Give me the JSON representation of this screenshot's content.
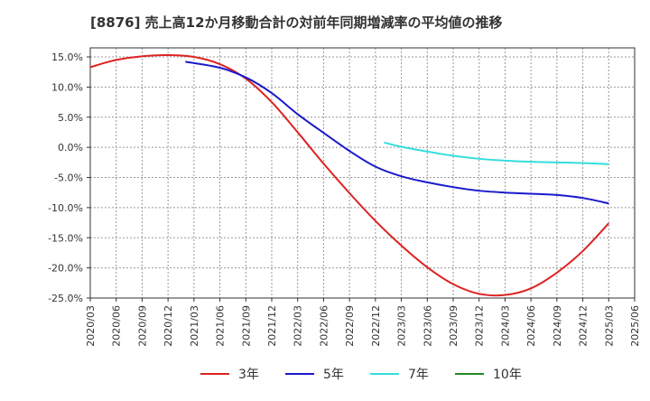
{
  "chart_data": {
    "type": "line",
    "title": "[8876]  売上高12か月移動合計の対前年同期増減率の平均値の推移",
    "xlabel": "",
    "ylabel": "",
    "ylim": [
      -25,
      16.5
    ],
    "yticks": [
      "15.0%",
      "10.0%",
      "5.0%",
      "0.0%",
      "-5.0%",
      "-10.0%",
      "-15.0%",
      "-20.0%",
      "-25.0%"
    ],
    "ytick_values": [
      15,
      10,
      5,
      0,
      -5,
      -10,
      -15,
      -20,
      -25
    ],
    "xticks": [
      "2020/03",
      "2020/06",
      "2020/09",
      "2020/12",
      "2021/03",
      "2021/06",
      "2021/09",
      "2021/12",
      "2022/03",
      "2022/06",
      "2022/09",
      "2022/12",
      "2023/03",
      "2023/06",
      "2023/09",
      "2023/12",
      "2024/03",
      "2024/06",
      "2024/09",
      "2024/12",
      "2025/03",
      "2025/06"
    ],
    "grid": true,
    "legend": "bottom",
    "series": [
      {
        "name": "3年",
        "color": "#dd2222",
        "points": [
          [
            "2020/03",
            13.3
          ],
          [
            "2020/06",
            14.5
          ],
          [
            "2020/09",
            15.1
          ],
          [
            "2020/12",
            15.3
          ],
          [
            "2021/03",
            15.0
          ],
          [
            "2021/06",
            13.8
          ],
          [
            "2021/09",
            11.4
          ],
          [
            "2021/12",
            7.5
          ],
          [
            "2022/03",
            2.5
          ],
          [
            "2022/06",
            -2.7
          ],
          [
            "2022/09",
            -7.6
          ],
          [
            "2022/12",
            -12.2
          ],
          [
            "2023/03",
            -16.3
          ],
          [
            "2023/06",
            -19.9
          ],
          [
            "2023/09",
            -22.7
          ],
          [
            "2023/12",
            -24.3
          ],
          [
            "2024/03",
            -24.5
          ],
          [
            "2024/06",
            -23.4
          ],
          [
            "2024/09",
            -20.8
          ],
          [
            "2024/12",
            -17.2
          ],
          [
            "2025/03",
            -12.6
          ]
        ]
      },
      {
        "name": "5年",
        "color": "#1a1acc",
        "points": [
          [
            "2021/02",
            14.2
          ],
          [
            "2021/06",
            13.2
          ],
          [
            "2021/09",
            11.6
          ],
          [
            "2021/12",
            9.0
          ],
          [
            "2022/03",
            5.5
          ],
          [
            "2022/06",
            2.4
          ],
          [
            "2022/09",
            -0.6
          ],
          [
            "2022/12",
            -3.2
          ],
          [
            "2023/03",
            -4.8
          ],
          [
            "2023/06",
            -5.8
          ],
          [
            "2023/09",
            -6.6
          ],
          [
            "2023/12",
            -7.2
          ],
          [
            "2024/03",
            -7.5
          ],
          [
            "2024/06",
            -7.7
          ],
          [
            "2024/09",
            -7.9
          ],
          [
            "2024/12",
            -8.4
          ],
          [
            "2025/03",
            -9.3
          ]
        ]
      },
      {
        "name": "7年",
        "color": "#33dddd",
        "points": [
          [
            "2023/01",
            0.8
          ],
          [
            "2023/03",
            0.1
          ],
          [
            "2023/06",
            -0.7
          ],
          [
            "2023/09",
            -1.4
          ],
          [
            "2023/12",
            -1.9
          ],
          [
            "2024/03",
            -2.2
          ],
          [
            "2024/06",
            -2.4
          ],
          [
            "2024/09",
            -2.5
          ],
          [
            "2024/12",
            -2.6
          ],
          [
            "2025/03",
            -2.8
          ]
        ]
      },
      {
        "name": "10年",
        "color": "#228822",
        "points": []
      }
    ]
  }
}
